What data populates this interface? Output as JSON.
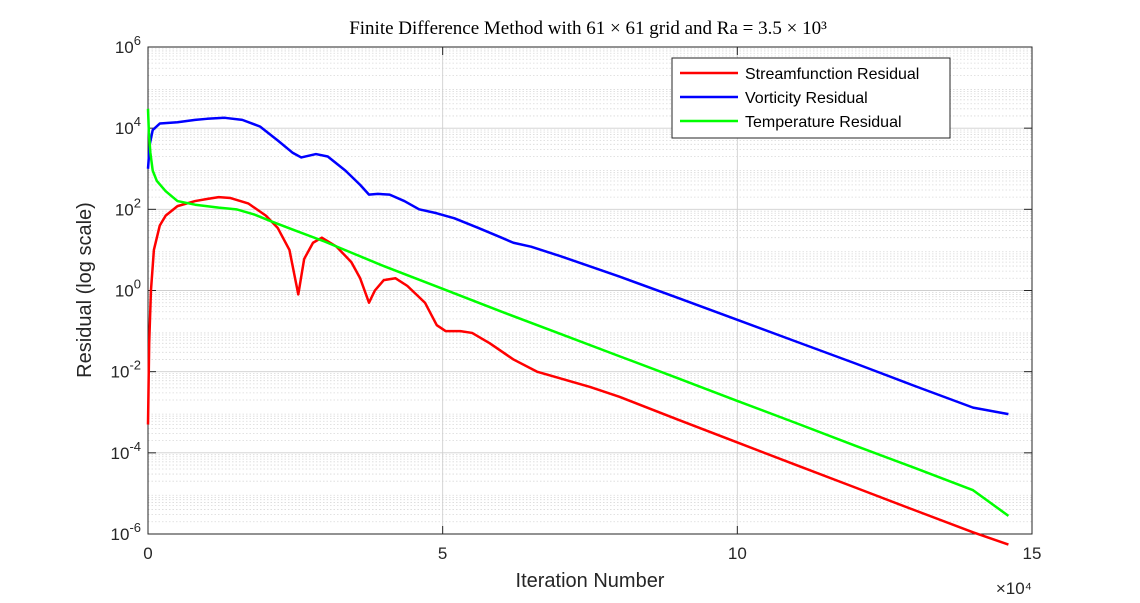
{
  "chart_data": {
    "type": "line",
    "title": "Finite Difference Method with 61 × 61 grid and Ra = 3.5 × 10³",
    "xlabel": "Iteration Number",
    "ylabel": "Residual (log scale)",
    "x_exponent_label": "×10⁴",
    "x_scale": "linear",
    "y_scale": "log",
    "xlim": [
      0,
      150000
    ],
    "ylim": [
      1e-06,
      1000000.0
    ],
    "x_ticks": [
      0,
      50000,
      100000,
      150000
    ],
    "x_tick_labels": [
      "0",
      "5",
      "10",
      "15"
    ],
    "y_ticks": [
      1e-06,
      0.0001,
      0.01,
      1,
      100.0,
      10000.0,
      1000000.0
    ],
    "y_tick_labels": [
      {
        "base": "10",
        "exp": "-6"
      },
      {
        "base": "10",
        "exp": "-4"
      },
      {
        "base": "10",
        "exp": "-2"
      },
      {
        "base": "10",
        "exp": "0"
      },
      {
        "base": "10",
        "exp": "2"
      },
      {
        "base": "10",
        "exp": "4"
      },
      {
        "base": "10",
        "exp": "6"
      }
    ],
    "grid": true,
    "minor_grid": true,
    "legend_position": "top-right",
    "series": [
      {
        "name": "Streamfunction Residual",
        "color": "#ff0000",
        "points": [
          [
            0,
            0.0005
          ],
          [
            200,
            0.05
          ],
          [
            500,
            1
          ],
          [
            1000,
            10
          ],
          [
            2000,
            40
          ],
          [
            3000,
            70
          ],
          [
            5000,
            120
          ],
          [
            8000,
            160
          ],
          [
            10000,
            180
          ],
          [
            12000,
            200
          ],
          [
            14000,
            190
          ],
          [
            17000,
            140
          ],
          [
            20000,
            70
          ],
          [
            22000,
            35
          ],
          [
            24000,
            10
          ],
          [
            25500,
            0.8
          ],
          [
            26500,
            6
          ],
          [
            28000,
            15
          ],
          [
            29500,
            20
          ],
          [
            32000,
            12
          ],
          [
            34500,
            5
          ],
          [
            36000,
            2
          ],
          [
            37500,
            0.5
          ],
          [
            38500,
            1
          ],
          [
            40000,
            1.8
          ],
          [
            42000,
            2
          ],
          [
            44000,
            1.3
          ],
          [
            47000,
            0.5
          ],
          [
            49000,
            0.14
          ],
          [
            50500,
            0.1
          ],
          [
            53000,
            0.1
          ],
          [
            55000,
            0.09
          ],
          [
            58000,
            0.05
          ],
          [
            62000,
            0.02
          ],
          [
            66000,
            0.01
          ],
          [
            70000,
            0.0068
          ],
          [
            75000,
            0.0042
          ],
          [
            80000,
            0.0024
          ],
          [
            90000,
            0.00065
          ],
          [
            100000,
            0.00018
          ],
          [
            110000,
            5e-05
          ],
          [
            120000,
            1.4e-05
          ],
          [
            130000,
            3.9e-06
          ],
          [
            140000,
            1.1e-06
          ],
          [
            146000,
            5.5e-07
          ]
        ]
      },
      {
        "name": "Vorticity Residual",
        "color": "#0000ff",
        "points": [
          [
            0,
            1000
          ],
          [
            300,
            4000
          ],
          [
            800,
            9000
          ],
          [
            2000,
            13000
          ],
          [
            5000,
            14000
          ],
          [
            8000,
            16000
          ],
          [
            10000,
            17000
          ],
          [
            13000,
            18000
          ],
          [
            16000,
            16000
          ],
          [
            19000,
            11000
          ],
          [
            22000,
            5000
          ],
          [
            24500,
            2500
          ],
          [
            26000,
            1900
          ],
          [
            28500,
            2300
          ],
          [
            30500,
            2000
          ],
          [
            33500,
            900
          ],
          [
            36000,
            400
          ],
          [
            37500,
            230
          ],
          [
            39000,
            240
          ],
          [
            41000,
            230
          ],
          [
            43500,
            160
          ],
          [
            46000,
            100
          ],
          [
            49000,
            80
          ],
          [
            52000,
            60
          ],
          [
            56000,
            35
          ],
          [
            60000,
            20
          ],
          [
            62000,
            15
          ],
          [
            65000,
            12
          ],
          [
            70000,
            7
          ],
          [
            80000,
            2.2
          ],
          [
            90000,
            0.65
          ],
          [
            100000,
            0.19
          ],
          [
            110000,
            0.055
          ],
          [
            120000,
            0.016
          ],
          [
            130000,
            0.0045
          ],
          [
            140000,
            0.0013
          ],
          [
            146000,
            0.0009
          ]
        ]
      },
      {
        "name": "Temperature Residual",
        "color": "#00ff00",
        "points": [
          [
            0,
            30000
          ],
          [
            150,
            8000
          ],
          [
            400,
            2500
          ],
          [
            800,
            900
          ],
          [
            1500,
            500
          ],
          [
            3000,
            280
          ],
          [
            5000,
            160
          ],
          [
            8000,
            130
          ],
          [
            12000,
            110
          ],
          [
            15000,
            100
          ],
          [
            18000,
            75
          ],
          [
            21000,
            50
          ],
          [
            25000,
            30
          ],
          [
            30000,
            16
          ],
          [
            35000,
            8
          ],
          [
            40000,
            4
          ],
          [
            50000,
            1.1
          ],
          [
            60000,
            0.3
          ],
          [
            70000,
            0.085
          ],
          [
            80000,
            0.024
          ],
          [
            90000,
            0.0068
          ],
          [
            100000,
            0.0019
          ],
          [
            110000,
            0.00054
          ],
          [
            120000,
            0.00015
          ],
          [
            130000,
            4.3e-05
          ],
          [
            140000,
            1.2e-05
          ],
          [
            146000,
            2.8e-06
          ]
        ]
      }
    ]
  }
}
